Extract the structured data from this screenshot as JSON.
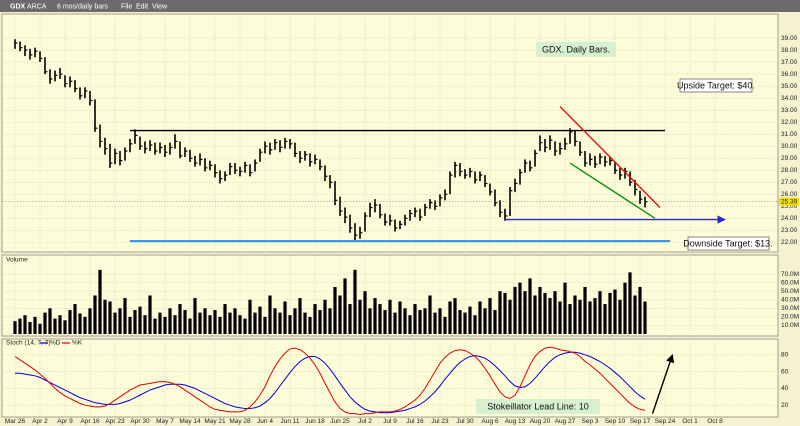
{
  "header": {
    "symbol": "GDX",
    "exchange": "ARCA",
    "period": "6 mos/daily bars",
    "menu": [
      "File",
      "Edit",
      "View"
    ]
  },
  "chart_data": [
    {
      "type": "ohlc",
      "color": "#000000",
      "ylim": [
        21.2,
        41
      ],
      "grid": true,
      "yticks": [
        {
          "value": 22,
          "label": "22.00"
        },
        {
          "value": 23,
          "label": "23.00"
        },
        {
          "value": 24,
          "label": "24.00"
        },
        {
          "value": 25,
          "label": "25.00"
        },
        {
          "value": 26,
          "label": "26.00"
        },
        {
          "value": 27,
          "label": "27.00"
        },
        {
          "value": 28,
          "label": "28.00"
        },
        {
          "value": 29,
          "label": "29.00"
        },
        {
          "value": 30,
          "label": "30.00"
        },
        {
          "value": 31,
          "label": "31.00"
        },
        {
          "value": 32,
          "label": "32.00"
        },
        {
          "value": 33,
          "label": "33.00"
        },
        {
          "value": 34,
          "label": "34.00"
        },
        {
          "value": 35,
          "label": "35.00"
        },
        {
          "value": 36,
          "label": "36.00"
        },
        {
          "value": 37,
          "label": "37.00"
        },
        {
          "value": 38,
          "label": "38.00"
        },
        {
          "value": 39,
          "label": "39.00"
        }
      ],
      "high": [
        38.9,
        38.7,
        38.4,
        38.1,
        38.2,
        37.9,
        37.4,
        36.4,
        36.3,
        36.5,
        35.9,
        35.8,
        35.5,
        34.9,
        34.9,
        34.6,
        33.9,
        31.8,
        30.7,
        30.2,
        29.8,
        29.6,
        29.9,
        30.6,
        31.4,
        30.8,
        30.4,
        30.5,
        30.3,
        30.3,
        30.1,
        30.3,
        31.0,
        30.4,
        29.9,
        29.7,
        29.2,
        29.4,
        29.0,
        28.8,
        28.5,
        28.0,
        27.9,
        28.6,
        28.6,
        28.3,
        28.7,
        28.5,
        28.9,
        29.8,
        30.4,
        30.3,
        30.6,
        30.5,
        30.7,
        30.6,
        30.3,
        29.6,
        29.6,
        29.4,
        29.3,
        28.9,
        28.4,
        27.6,
        27.1,
        25.8,
        24.9,
        24.3,
        23.6,
        23.3,
        24.5,
        25.3,
        25.6,
        25.2,
        24.4,
        24.3,
        23.9,
        23.8,
        24.3,
        24.7,
        24.9,
        24.8,
        25.2,
        25.6,
        25.5,
        26.0,
        26.4,
        27.9,
        28.7,
        28.6,
        28.1,
        28.2,
        27.9,
        27.9,
        27.6,
        26.9,
        26.4,
        25.5,
        24.8,
        26.6,
        27.3,
        28.1,
        28.9,
        28.8,
        29.7,
        30.9,
        30.6,
        30.9,
        30.4,
        30.3,
        30.7,
        31.5,
        31.3,
        30.4,
        29.6,
        29.4,
        29.2,
        29.4,
        29.2,
        29.1,
        28.7,
        28.2,
        28.2,
        27.9,
        27.2,
        26.3,
        25.8,
        null,
        null,
        null,
        null,
        null,
        null,
        null,
        null,
        null,
        null,
        null,
        null,
        null,
        null
      ],
      "low": [
        38.1,
        37.9,
        37.5,
        37.2,
        37.4,
        37.0,
        36.0,
        35.2,
        35.4,
        35.6,
        34.9,
        34.9,
        34.5,
        33.9,
        34.0,
        33.4,
        31.2,
        29.9,
        29.3,
        28.2,
        28.5,
        28.4,
        28.8,
        29.5,
        30.2,
        29.7,
        29.4,
        29.6,
        29.3,
        29.4,
        29.1,
        29.3,
        29.8,
        29.0,
        29.1,
        28.7,
        28.3,
        28.4,
        27.9,
        28.0,
        27.4,
        26.9,
        27.1,
        27.6,
        27.7,
        27.5,
        27.8,
        27.5,
        27.9,
        28.7,
        29.4,
        29.3,
        29.7,
        29.5,
        29.8,
        29.8,
        29.1,
        28.6,
        28.8,
        28.3,
        28.5,
        28.0,
        27.1,
        26.5,
        25.1,
        24.2,
        23.6,
        22.8,
        22.2,
        22.3,
        22.9,
        24.1,
        24.5,
        24.0,
        23.4,
        23.4,
        22.9,
        23.1,
        23.4,
        23.8,
        24.1,
        23.8,
        24.2,
        24.8,
        24.7,
        25.0,
        25.5,
        26.0,
        27.4,
        27.5,
        27.3,
        27.4,
        26.9,
        27.1,
        26.6,
        25.9,
        25.0,
        24.1,
        23.8,
        24.2,
        26.2,
        26.8,
        27.8,
        27.9,
        28.3,
        29.6,
        29.5,
        29.7,
        29.2,
        29.3,
        29.7,
        30.2,
        30.0,
        29.2,
        28.3,
        28.4,
        28.2,
        28.5,
        28.3,
        28.4,
        27.7,
        27.2,
        27.3,
        26.7,
        25.9,
        25.2,
        24.9,
        null,
        null,
        null,
        null,
        null,
        null,
        null,
        null,
        null,
        null,
        null,
        null,
        null,
        null
      ],
      "close": [
        38.6,
        38.2,
        38.0,
        37.6,
        37.9,
        37.3,
        36.2,
        35.6,
        35.9,
        36.0,
        35.2,
        35.4,
        34.8,
        34.2,
        34.6,
        33.8,
        31.5,
        30.4,
        29.8,
        28.6,
        29.4,
        28.8,
        29.6,
        30.2,
        30.9,
        30.0,
        29.8,
        30.1,
        29.6,
        29.9,
        29.5,
        29.9,
        30.4,
        29.2,
        29.6,
        29.0,
        28.6,
        28.9,
        28.2,
        28.4,
        27.8,
        27.3,
        27.6,
        28.3,
        28.0,
        27.9,
        28.4,
        27.8,
        28.6,
        29.5,
        30.0,
        29.7,
        30.3,
        29.9,
        30.4,
        30.2,
        29.4,
        29.0,
        29.3,
        28.7,
        28.9,
        28.3,
        27.5,
        27.0,
        25.5,
        24.6,
        24.1,
        23.2,
        22.6,
        22.8,
        24.2,
        24.9,
        25.1,
        24.3,
        23.7,
        23.8,
        23.2,
        23.5,
        24.0,
        24.4,
        24.6,
        24.1,
        24.9,
        25.3,
        25.0,
        25.7,
        26.0,
        27.6,
        28.4,
        27.9,
        27.6,
        27.9,
        27.2,
        27.6,
        26.9,
        26.2,
        25.3,
        24.5,
        24.2,
        26.3,
        26.9,
        27.8,
        28.6,
        28.2,
        29.4,
        30.3,
        29.9,
        30.5,
        29.6,
        29.8,
        30.2,
        31.2,
        30.4,
        29.5,
        28.6,
        28.9,
        28.5,
        29.1,
        28.7,
        28.8,
        28.0,
        27.6,
        27.9,
        27.0,
        26.4,
        25.6,
        25.39,
        null,
        null,
        null,
        null,
        null,
        null,
        null,
        null,
        null,
        null,
        null,
        null,
        null,
        null
      ],
      "lines": [
        {
          "color": "#000000",
          "x": [
            23,
            130
          ],
          "y": [
            31.3,
            31.3
          ]
        },
        {
          "color": "#1e90ff",
          "x": [
            23,
            131
          ],
          "y": [
            22.1,
            22.1
          ]
        },
        {
          "color": "#2a2ad0",
          "x": [
            98,
            142
          ],
          "y": [
            23.9,
            23.9
          ],
          "arrow": true
        },
        {
          "color": "#e01010",
          "x": [
            109,
            129
          ],
          "y": [
            33.3,
            24.9
          ]
        },
        {
          "color": "#109010",
          "x": [
            111,
            128
          ],
          "y": [
            28.6,
            24.0
          ]
        }
      ],
      "annotations": [
        "GDX. Daily Bars.",
        "Upside Target: $40.",
        "Downside Target: $13."
      ]
    },
    {
      "type": "bar",
      "title": "Volume",
      "color": "#000000",
      "ylim": [
        0,
        90
      ],
      "grid": true,
      "yticks": [
        {
          "value": 10,
          "label": "10.0M"
        },
        {
          "value": 20,
          "label": "20.0M"
        },
        {
          "value": 30,
          "label": "30.0M"
        },
        {
          "value": 40,
          "label": "40.0M"
        },
        {
          "value": 50,
          "label": "50.0M"
        },
        {
          "value": 60,
          "label": "60.0M"
        },
        {
          "value": 70,
          "label": "70.0M"
        }
      ],
      "values": [
        15,
        18,
        22,
        14,
        20,
        12,
        25,
        30,
        18,
        22,
        16,
        28,
        35,
        24,
        20,
        30,
        45,
        75,
        40,
        38,
        25,
        30,
        42,
        20,
        28,
        32,
        22,
        45,
        18,
        25,
        20,
        30,
        22,
        35,
        28,
        18,
        42,
        25,
        30,
        22,
        28,
        20,
        35,
        25,
        30,
        22,
        18,
        40,
        25,
        32,
        20,
        45,
        30,
        25,
        38,
        22,
        30,
        42,
        25,
        20,
        35,
        28,
        40,
        30,
        55,
        45,
        65,
        35,
        75,
        40,
        50,
        30,
        42,
        35,
        28,
        40,
        25,
        38,
        30,
        22,
        35,
        28,
        30,
        45,
        25,
        30,
        20,
        38,
        42,
        28,
        25,
        32,
        22,
        38,
        30,
        42,
        28,
        50,
        48,
        40,
        55,
        60,
        50,
        65,
        45,
        55,
        48,
        42,
        50,
        38,
        60,
        35,
        45,
        40,
        55,
        38,
        42,
        50,
        35,
        48,
        52,
        40,
        60,
        72,
        45,
        55,
        38,
        null,
        null,
        null,
        null,
        null,
        null,
        null,
        null,
        null,
        null,
        null,
        null,
        null,
        null
      ]
    },
    {
      "type": "line",
      "title": "Stoch (14, 7, 7)",
      "ylim": [
        0,
        100
      ],
      "yticks": [
        20,
        40,
        60,
        80
      ],
      "grid": true,
      "categories": [
        "Mar 26",
        null,
        null,
        null,
        null,
        "Apr 2",
        null,
        null,
        null,
        null,
        "Apr 9",
        null,
        null,
        null,
        null,
        "Apr 16",
        null,
        null,
        null,
        null,
        "Apr 23",
        null,
        null,
        null,
        null,
        "Apr 30",
        null,
        null,
        null,
        null,
        "May 7",
        null,
        null,
        null,
        null,
        "May 14",
        null,
        null,
        null,
        null,
        "May 21",
        null,
        null,
        null,
        null,
        "May 28",
        null,
        null,
        null,
        null,
        "Jun 4",
        null,
        null,
        null,
        null,
        "Jun 11",
        null,
        null,
        null,
        null,
        "Jun 18",
        null,
        null,
        null,
        null,
        "Jun 25",
        null,
        null,
        null,
        null,
        "Jul 2",
        null,
        null,
        null,
        null,
        "Jul 9",
        null,
        null,
        null,
        null,
        "Jul 16",
        null,
        null,
        null,
        null,
        "Jul 23",
        null,
        null,
        null,
        null,
        "Jul 30",
        null,
        null,
        null,
        null,
        "Aug 6",
        null,
        null,
        null,
        null,
        "Aug 13",
        null,
        null,
        null,
        null,
        "Aug 20",
        null,
        null,
        null,
        null,
        "Aug 27",
        null,
        null,
        null,
        null,
        "Sep 3",
        null,
        null,
        null,
        null,
        "Sep 10",
        null,
        null,
        null,
        null,
        "Sep 17",
        null,
        null,
        null,
        null,
        "Sep 24",
        null,
        null,
        null,
        null,
        "Oct 1",
        null,
        null,
        null,
        null,
        "Oct 8"
      ],
      "series": [
        {
          "name": "%D",
          "color": "#0000e0",
          "values": [
            58,
            58,
            57,
            56,
            55,
            53,
            50,
            47,
            44,
            41,
            38,
            35,
            32,
            29,
            27,
            25,
            23,
            22,
            21,
            21,
            21,
            22,
            24,
            26,
            29,
            32,
            35,
            38,
            40,
            42,
            44,
            45,
            45,
            45,
            44,
            42,
            40,
            37,
            34,
            31,
            28,
            25,
            22,
            20,
            18,
            17,
            16,
            16,
            17,
            19,
            23,
            28,
            35,
            43,
            51,
            59,
            66,
            72,
            76,
            78,
            78,
            75,
            70,
            63,
            55,
            46,
            38,
            30,
            24,
            19,
            15,
            13,
            12,
            11,
            11,
            11,
            12,
            13,
            14,
            16,
            18,
            21,
            25,
            30,
            36,
            43,
            51,
            58,
            65,
            71,
            75,
            78,
            79,
            78,
            76,
            72,
            67,
            61,
            55,
            48,
            43,
            41,
            42,
            46,
            52,
            59,
            66,
            72,
            77,
            80,
            82,
            83,
            83,
            82,
            80,
            78,
            75,
            72,
            68,
            64,
            59,
            54,
            48,
            42,
            36,
            31,
            27,
            null,
            null,
            null,
            null,
            null,
            null,
            null,
            null,
            null,
            null,
            null,
            null,
            null,
            null
          ]
        },
        {
          "name": "%K",
          "color": "#e00000",
          "values": [
            78,
            74,
            70,
            66,
            62,
            57,
            52,
            46,
            40,
            35,
            31,
            28,
            25,
            22,
            20,
            19,
            18,
            18,
            19,
            22,
            26,
            30,
            34,
            38,
            41,
            44,
            45,
            46,
            47,
            48,
            48,
            47,
            45,
            42,
            38,
            34,
            30,
            26,
            22,
            18,
            15,
            14,
            13,
            12,
            12,
            12,
            14,
            18,
            24,
            32,
            42,
            55,
            66,
            75,
            82,
            87,
            88,
            86,
            82,
            76,
            68,
            58,
            46,
            35,
            24,
            16,
            12,
            10,
            10,
            9,
            10,
            10,
            11,
            12,
            12,
            12,
            13,
            15,
            18,
            22,
            26,
            32,
            40,
            50,
            60,
            70,
            77,
            82,
            85,
            86,
            85,
            82,
            78,
            72,
            64,
            55,
            45,
            36,
            30,
            28,
            32,
            42,
            55,
            68,
            78,
            84,
            88,
            89,
            88,
            86,
            85,
            84,
            82,
            78,
            72,
            68,
            63,
            58,
            52,
            46,
            40,
            34,
            28,
            22,
            18,
            15,
            14,
            null,
            null,
            null,
            null,
            null,
            null,
            null,
            null,
            null,
            null,
            null,
            null,
            null,
            null
          ]
        }
      ],
      "lines": [
        {
          "color": "#000000",
          "x": [
            127.5,
            131.5
          ],
          "y": [
            10,
            80
          ],
          "arrow": true
        }
      ],
      "annotations": [
        "Stokeillator Lead Line: 10"
      ]
    }
  ]
}
